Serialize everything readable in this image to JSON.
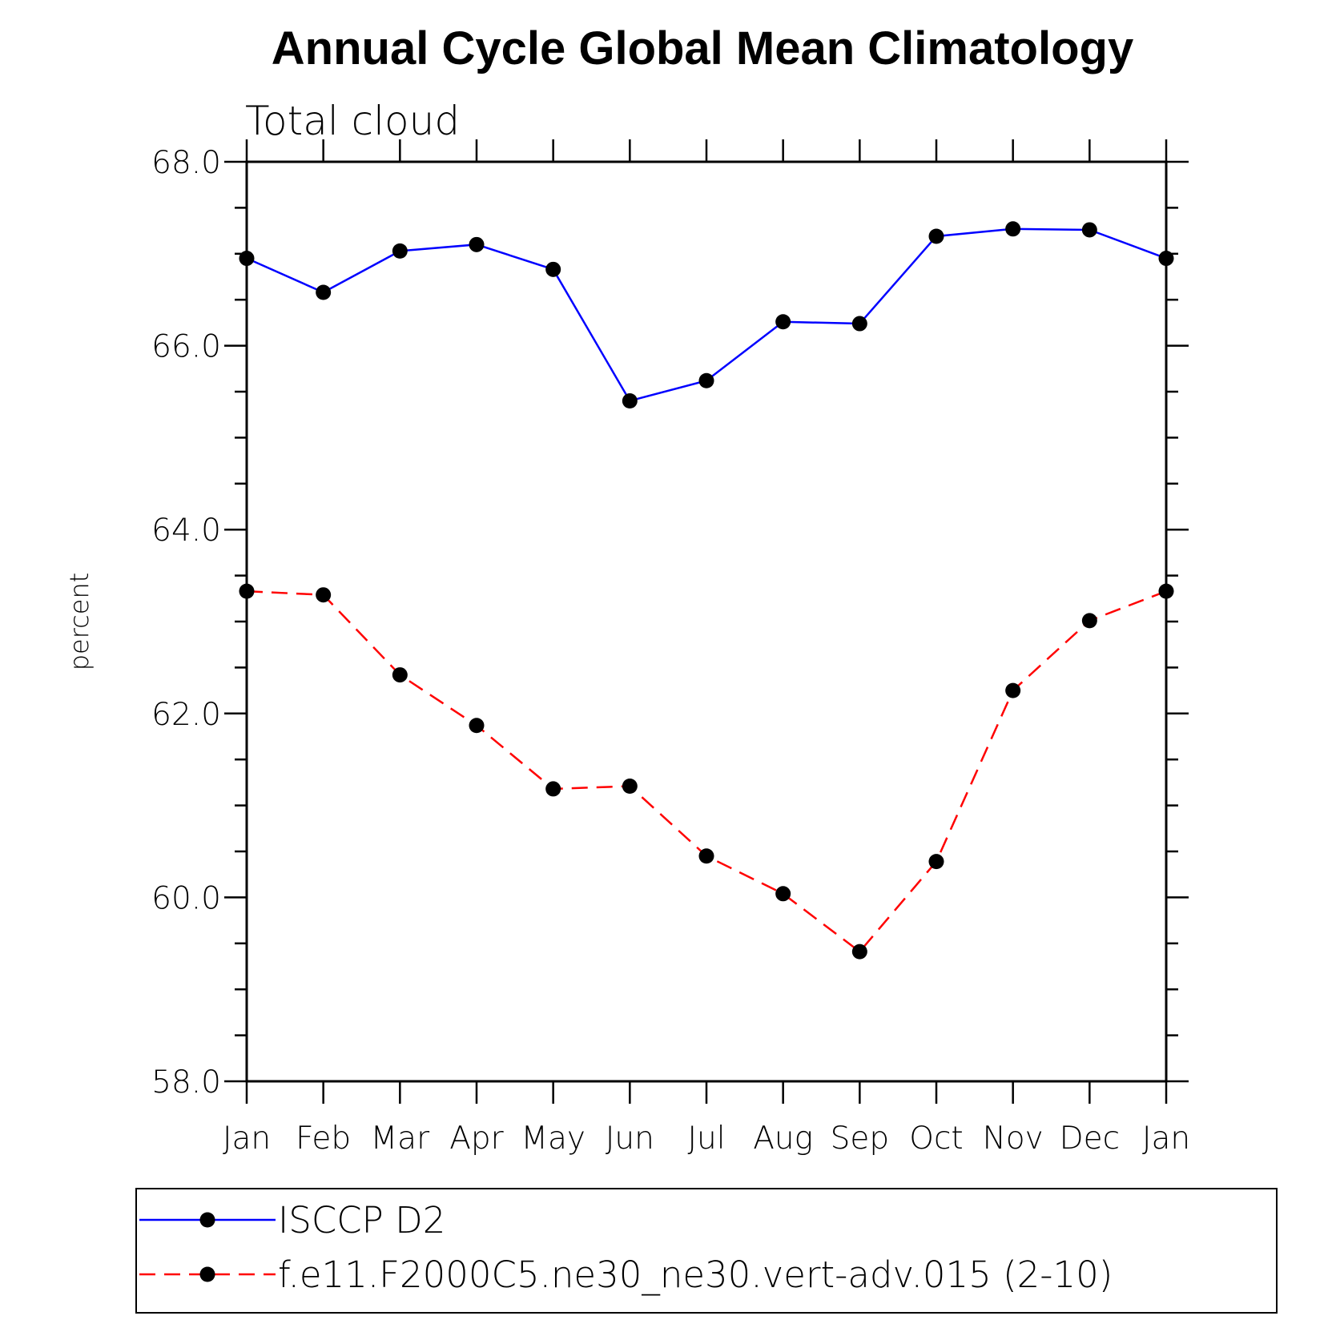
{
  "chart_data": {
    "type": "line",
    "title": "Annual Cycle Global Mean Climatology",
    "subtitle": "Total cloud",
    "ylabel": "percent",
    "xlabel": "",
    "ylim": [
      58.0,
      68.0
    ],
    "y_ticks": [
      "58.0",
      "60.0",
      "62.0",
      "64.0",
      "66.0",
      "68.0"
    ],
    "categories": [
      "Jan",
      "Feb",
      "Mar",
      "Apr",
      "May",
      "Jun",
      "Jul",
      "Aug",
      "Sep",
      "Oct",
      "Nov",
      "Dec",
      "Jan"
    ],
    "grid": false,
    "legend_position": "bottom",
    "series": [
      {
        "name": "ISCCP D2",
        "color": "#0000ff",
        "line_style": "solid",
        "marker": "filled-circle",
        "values": [
          66.95,
          66.58,
          67.03,
          67.1,
          66.83,
          65.4,
          65.62,
          66.26,
          66.24,
          67.19,
          67.27,
          67.26,
          66.95
        ]
      },
      {
        "name": "f.e11.F2000C5.ne30_ne30.vert-adv.015 (2-10)",
        "color": "#ff0000",
        "line_style": "dashed",
        "marker": "filled-circle",
        "values": [
          63.33,
          63.29,
          62.42,
          61.87,
          61.18,
          61.21,
          60.45,
          60.04,
          59.41,
          60.39,
          62.25,
          63.01,
          63.33
        ]
      }
    ]
  }
}
